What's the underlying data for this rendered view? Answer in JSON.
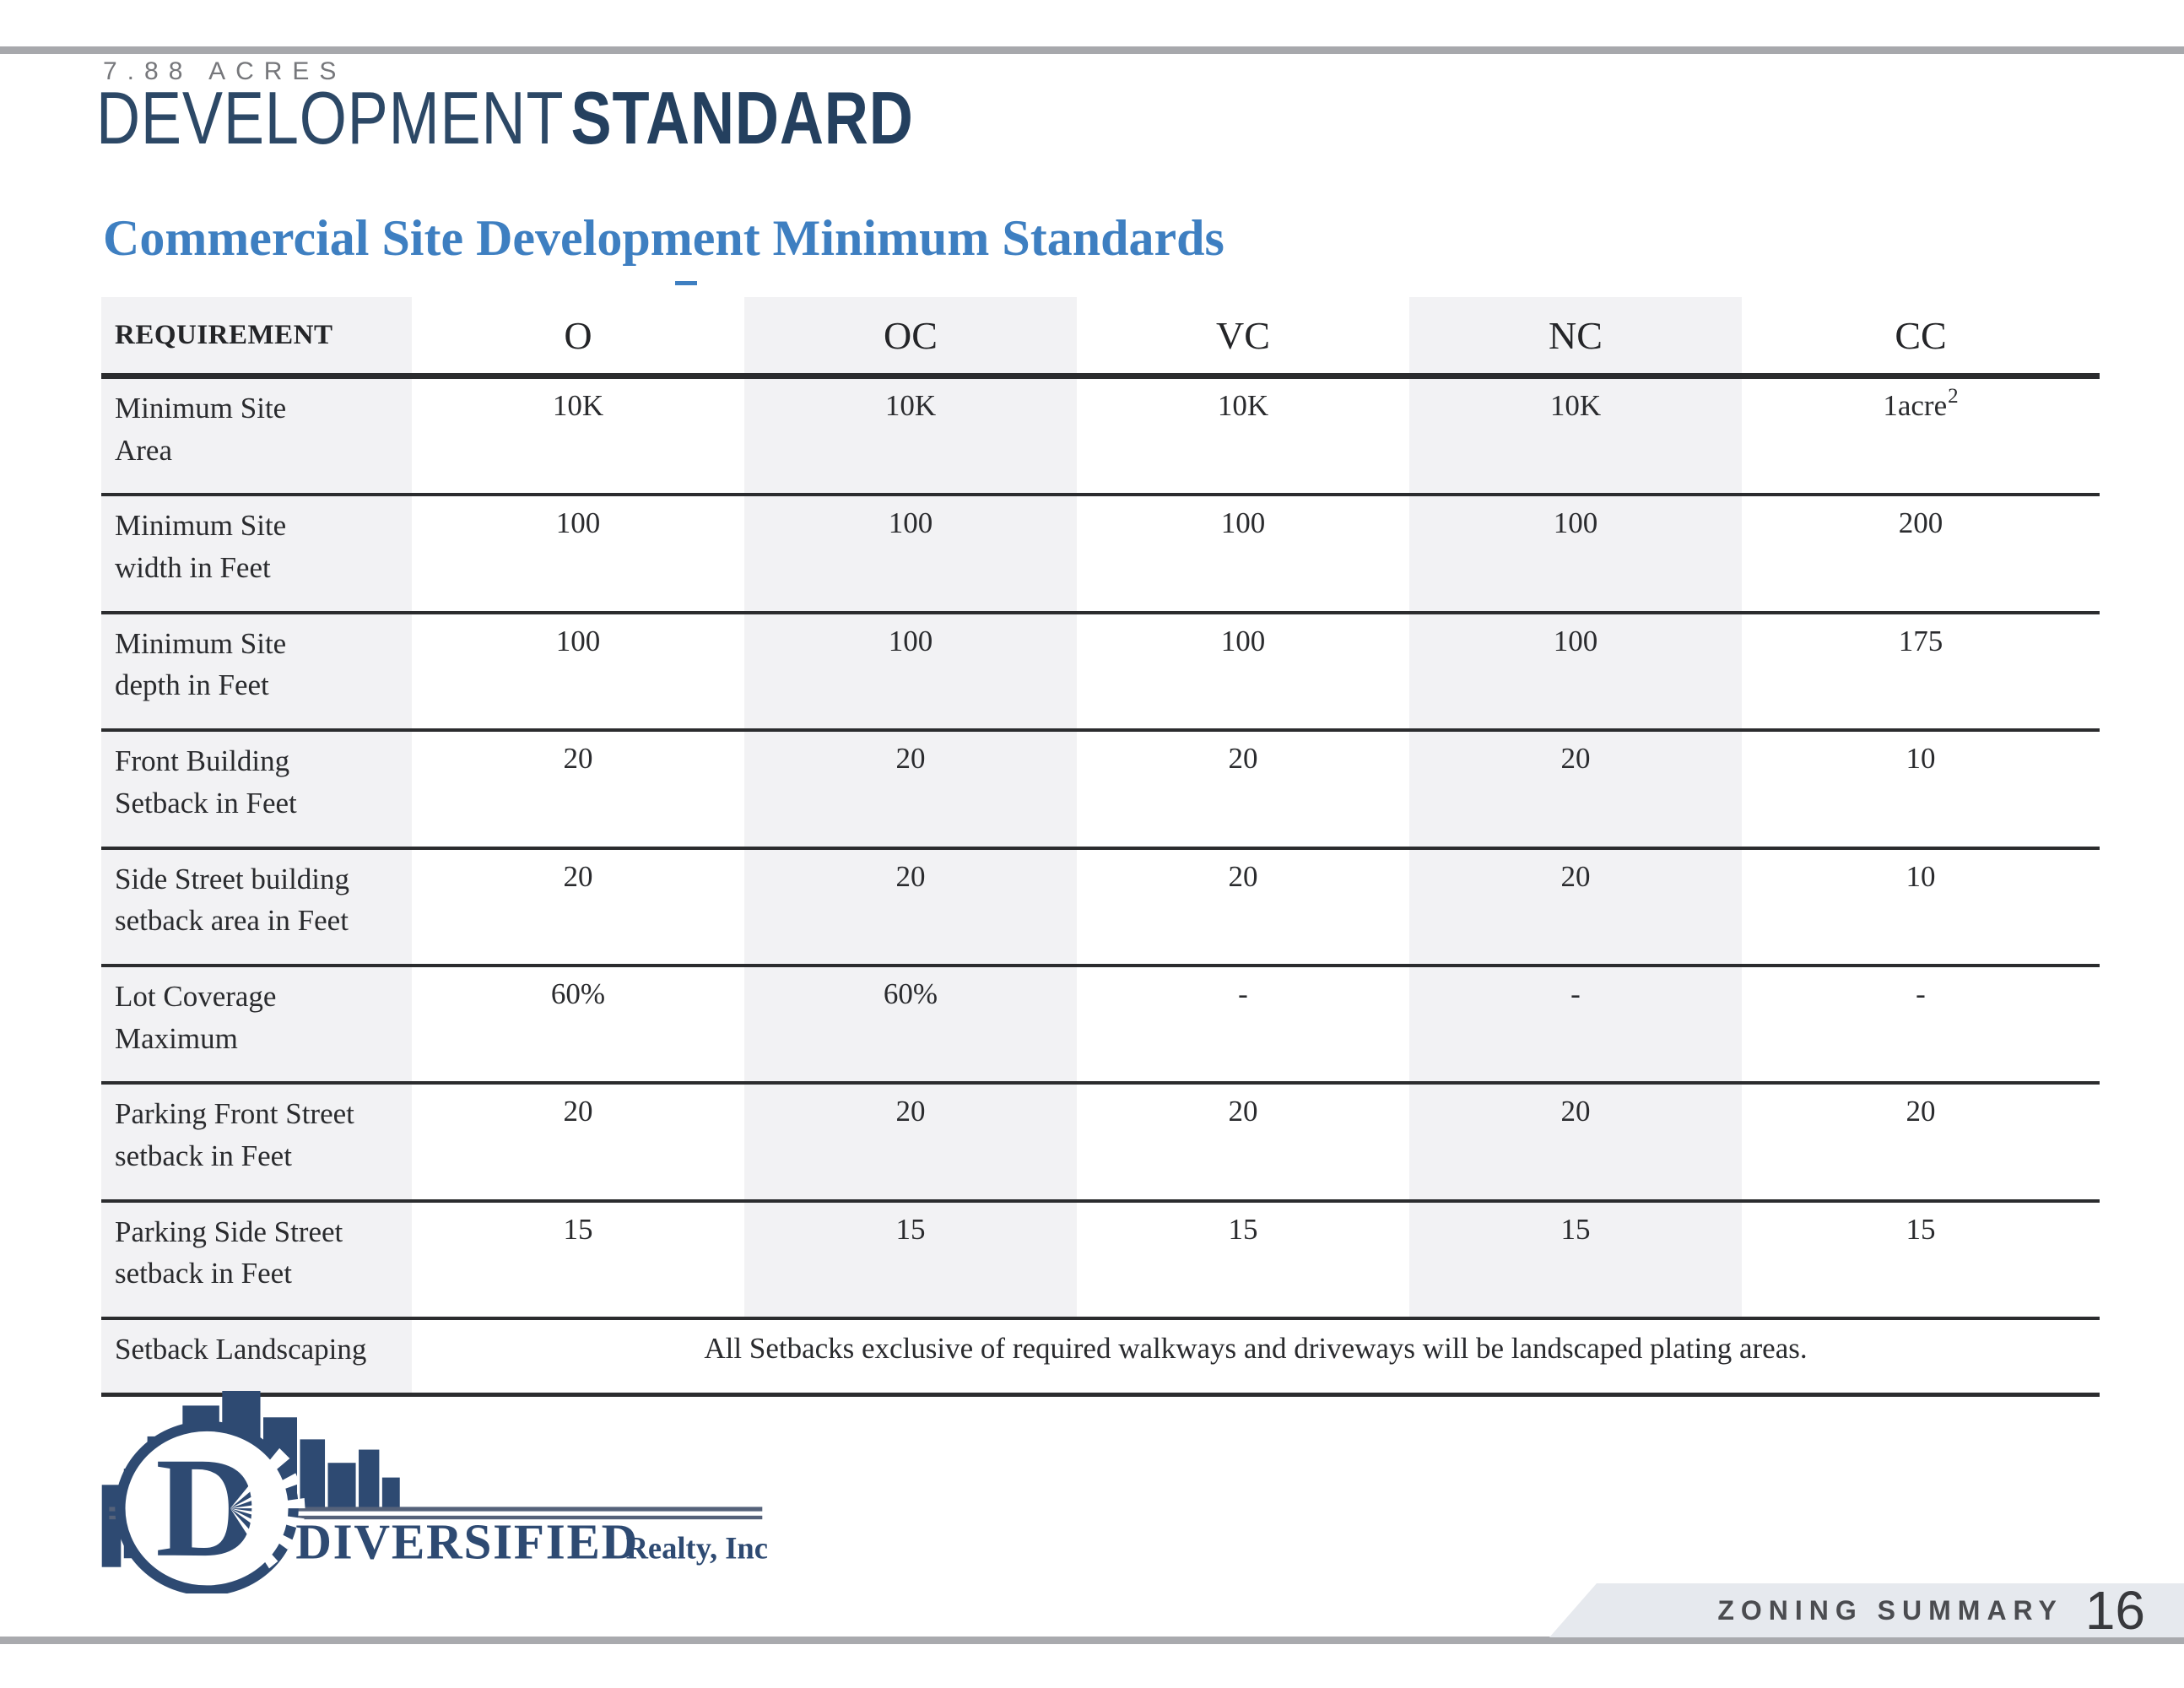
{
  "page": {
    "acreage": "7.88 ACRES",
    "title": {
      "light": "DEVELOPMENT",
      "bold": "STANDARD"
    },
    "section_heading": "Commercial Site Development Minimum Standards",
    "footer": {
      "label": "ZONING SUMMARY",
      "page_number": "16"
    }
  },
  "logo": {
    "company": "DIVERSIFIED",
    "suffix": "Realty, Inc",
    "monogram": "D"
  },
  "colors": {
    "logo_navy": "#2e4a72",
    "title_navy": "#2c4866",
    "accent_blue": "#3e7fc1",
    "stripe_gray": "#f2f2f4",
    "border_dark": "#2b2c2e",
    "rule_gray": "#a9aaae",
    "footer_band_gray": "#e6e9ee"
  },
  "table": {
    "columns": [
      "REQUIREMENT",
      "O",
      "OC",
      "VC",
      "NC",
      "CC"
    ],
    "stripe_column_indexes": [
      0,
      2,
      4
    ],
    "highlight_column_index": 2,
    "rows": [
      {
        "label_lines": [
          "Minimum Site",
          "Area"
        ],
        "cells": [
          {
            "t": "10K"
          },
          {
            "t": "10K",
            "blue": true
          },
          {
            "t": "10K"
          },
          {
            "t": "10K"
          },
          {
            "t": "1acre",
            "sup": "2"
          }
        ]
      },
      {
        "label_lines": [
          "Minimum Site",
          "width in Feet"
        ],
        "cells": [
          {
            "t": "100"
          },
          {
            "t": "100",
            "blue": true
          },
          {
            "t": "100"
          },
          {
            "t": "100"
          },
          {
            "t": "200"
          }
        ]
      },
      {
        "label_lines": [
          "Minimum Site",
          "depth in Feet"
        ],
        "cells": [
          {
            "t": "100"
          },
          {
            "t": "100",
            "blue": true
          },
          {
            "t": "100"
          },
          {
            "t": "100"
          },
          {
            "t": "175"
          }
        ]
      },
      {
        "label_lines": [
          "Front Building",
          "Setback in Feet"
        ],
        "cells": [
          {
            "t": "20"
          },
          {
            "t": "20",
            "blue": true
          },
          {
            "t": "20"
          },
          {
            "t": "20"
          },
          {
            "t": "10"
          }
        ]
      },
      {
        "label_lines": [
          "Side Street building",
          "setback area in Feet"
        ],
        "cells": [
          {
            "t": "20"
          },
          {
            "t": "20",
            "blue": true
          },
          {
            "t": "20"
          },
          {
            "t": "20"
          },
          {
            "t": "10"
          }
        ]
      },
      {
        "label_lines": [
          "Lot Coverage",
          "Maximum"
        ],
        "cells": [
          {
            "t": "60%"
          },
          {
            "t": "60%",
            "blue": true
          },
          {
            "t": "-"
          },
          {
            "t": "-"
          },
          {
            "t": "-",
            "blue": true
          }
        ]
      },
      {
        "label_lines": [
          "Parking Front Street",
          "setback in Feet"
        ],
        "cells": [
          {
            "t": "20"
          },
          {
            "t": "20",
            "blue": true
          },
          {
            "t": "20"
          },
          {
            "t": "20"
          },
          {
            "t": "20"
          }
        ]
      },
      {
        "label_lines": [
          "Parking Side Street",
          "setback in Feet"
        ],
        "cells": [
          {
            "t": "15"
          },
          {
            "t": "15",
            "blue": true
          },
          {
            "t": "15"
          },
          {
            "t": "15"
          },
          {
            "t": "15"
          }
        ]
      }
    ],
    "merged_row": {
      "label": "Setback Landscaping",
      "note": "All Setbacks exclusive of required walkways and driveways will be landscaped plating areas."
    }
  }
}
